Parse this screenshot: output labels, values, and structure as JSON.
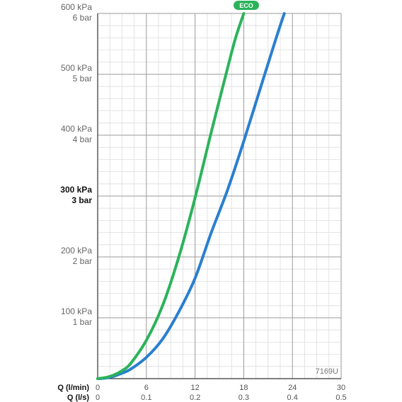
{
  "chart_data": {
    "type": "line",
    "x_unit_primary": "Q (l/min)",
    "x_unit_secondary": "Q (l/s)",
    "x_ticks_lmin": [
      "0",
      "6",
      "12",
      "18",
      "24",
      "30"
    ],
    "x_ticks_ls": [
      "0",
      "0.1",
      "0.2",
      "0.3",
      "0.4",
      "0.5"
    ],
    "xlim": [
      0,
      30
    ],
    "ylim": [
      0,
      600
    ],
    "y_ticks": [
      {
        "value": 100,
        "kpa": "100 kPa",
        "bar": "1 bar",
        "bold": false
      },
      {
        "value": 200,
        "kpa": "200 kPa",
        "bar": "2 bar",
        "bold": false
      },
      {
        "value": 300,
        "kpa": "300 kPa",
        "bar": "3 bar",
        "bold": true
      },
      {
        "value": 400,
        "kpa": "400 kPa",
        "bar": "4 bar",
        "bold": false
      },
      {
        "value": 500,
        "kpa": "500 kPa",
        "bar": "5 bar",
        "bold": false
      },
      {
        "value": 600,
        "kpa": "600 kPa",
        "bar": "6 bar",
        "bold": false
      }
    ],
    "grid": true,
    "series": [
      {
        "name": "ECO",
        "color": "#2bb35a",
        "x": [
          0,
          1,
          2,
          3,
          4,
          6,
          8,
          10,
          12,
          14,
          16,
          17,
          18
        ],
        "y": [
          0,
          2,
          6,
          13,
          24,
          63,
          120,
          200,
          297,
          405,
          510,
          560,
          600
        ]
      },
      {
        "color": "#2a7fd0",
        "x": [
          0,
          1,
          2,
          3,
          4,
          6,
          8,
          10,
          12,
          14,
          16,
          18,
          20,
          22,
          23
        ],
        "y": [
          0,
          1,
          4,
          9,
          15,
          35,
          65,
          110,
          165,
          240,
          310,
          390,
          475,
          560,
          600
        ]
      }
    ],
    "badge": {
      "text": "ECO",
      "color": "#2bb35a"
    },
    "code_label": "7169U"
  }
}
